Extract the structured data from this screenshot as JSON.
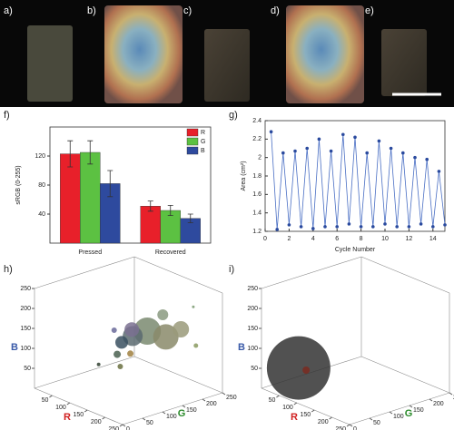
{
  "photos": {
    "labels": [
      "a)",
      "b)",
      "c)",
      "d)",
      "e)"
    ]
  },
  "chart_data": [
    {
      "type": "bar",
      "panel_label": "f)",
      "ylabel": "sRGB (0-255)",
      "categories": [
        "Pressed",
        "Recovered"
      ],
      "series": [
        {
          "name": "R",
          "color": "#e8202a",
          "values": [
            123,
            51
          ],
          "errors": [
            18,
            7
          ]
        },
        {
          "name": "G",
          "color": "#5cc142",
          "values": [
            125,
            45
          ],
          "errors": [
            16,
            7
          ]
        },
        {
          "name": "B",
          "color": "#2e4a9e",
          "values": [
            82,
            34
          ],
          "errors": [
            18,
            6
          ]
        }
      ],
      "ylim": [
        0,
        160
      ],
      "yticks": [
        40,
        80,
        120
      ],
      "legend": "top-right"
    },
    {
      "type": "line",
      "panel_label": "g)",
      "xlabel": "Cycle Number",
      "ylabel": "Area (cm²)",
      "x": [
        0.5,
        1,
        1.5,
        2,
        2.5,
        3,
        3.5,
        4,
        4.5,
        5,
        5.5,
        6,
        6.5,
        7,
        7.5,
        8,
        8.5,
        9,
        9.5,
        10,
        10.5,
        11,
        11.5,
        12,
        12.5,
        13,
        13.5,
        14,
        14.5,
        15
      ],
      "series": [
        {
          "name": "Area",
          "color": "#4a6fc4",
          "values": [
            2.28,
            1.22,
            2.05,
            1.27,
            2.07,
            1.25,
            2.1,
            1.23,
            2.2,
            1.25,
            2.07,
            1.25,
            2.25,
            1.28,
            2.22,
            1.25,
            2.05,
            1.25,
            2.18,
            1.28,
            2.1,
            1.25,
            2.05,
            1.25,
            2.0,
            1.28,
            1.98,
            1.25,
            1.85,
            1.27
          ]
        }
      ],
      "xlim": [
        0,
        15
      ],
      "xticks": [
        0,
        2,
        4,
        6,
        8,
        10,
        12,
        14
      ],
      "ylim": [
        1.2,
        2.4
      ],
      "yticks": [
        1.2,
        1.4,
        1.6,
        1.8,
        2.0,
        2.2,
        2.4
      ]
    },
    {
      "type": "scatter3d",
      "panel_label": "h)",
      "xlabel": "R",
      "ylabel": "G",
      "zlabel": "B",
      "xlim": [
        0,
        250
      ],
      "ylim": [
        0,
        250
      ],
      "zlim": [
        0,
        250
      ],
      "xticks": [
        50,
        100,
        150,
        200,
        250
      ],
      "yticks": [
        0,
        50,
        100,
        150,
        200,
        250
      ],
      "zticks": [
        50,
        100,
        150,
        200,
        250
      ],
      "series": [
        {
          "x": [
            150,
            180,
            120,
            140,
            200,
            100,
            160,
            110,
            130,
            90,
            170,
            220,
            80,
            190
          ],
          "y": [
            150,
            170,
            140,
            120,
            190,
            130,
            180,
            110,
            100,
            120,
            90,
            210,
            90,
            230
          ],
          "z": [
            150,
            140,
            130,
            160,
            160,
            110,
            185,
            90,
            70,
            140,
            120,
            120,
            60,
            200
          ],
          "sizes": [
            30,
            28,
            22,
            16,
            18,
            14,
            12,
            8,
            6,
            6,
            7,
            5,
            4,
            3
          ],
          "colors": [
            "#7a8a70",
            "#8a8a6a",
            "#5a6a70",
            "#7a7090",
            "#9a9a7a",
            "#3a5060",
            "#8a9a80",
            "#4a6050",
            "#6a7040",
            "#6a6a9a",
            "#a08040",
            "#8a9a60",
            "#304030",
            "#7a9a70"
          ]
        }
      ]
    },
    {
      "type": "scatter3d",
      "panel_label": "i)",
      "xlabel": "R",
      "ylabel": "G",
      "zlabel": "B",
      "xlim": [
        0,
        250
      ],
      "ylim": [
        0,
        250
      ],
      "zlim": [
        0,
        250
      ],
      "xticks": [
        50,
        100,
        150,
        200,
        250
      ],
      "yticks": [
        0,
        50,
        100,
        150,
        200,
        250
      ],
      "zticks": [
        50,
        100,
        150,
        200,
        250
      ],
      "series": [
        {
          "x": [
            60,
            70
          ],
          "y": [
            40,
            50
          ],
          "z": [
            60,
            55
          ],
          "sizes": [
            70,
            8
          ],
          "colors": [
            "#333333",
            "#7a2a20"
          ]
        }
      ]
    }
  ]
}
